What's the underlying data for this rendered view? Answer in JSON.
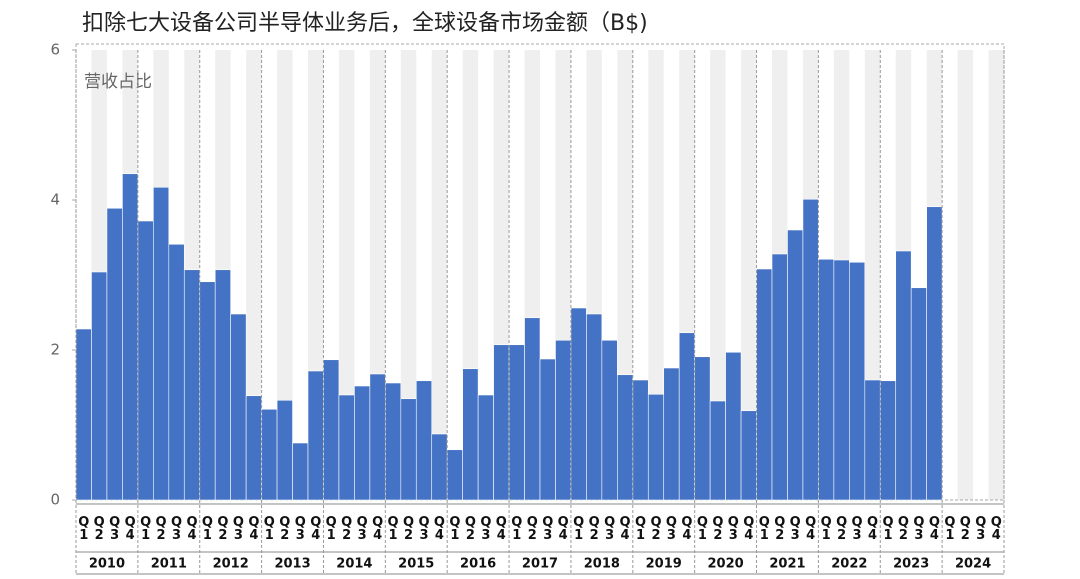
{
  "chart_data": {
    "type": "bar",
    "title": "扣除七大设备公司半导体业务后，全球设备市场金额（B$)",
    "annotation": "营收占比",
    "categories": [
      "Q1",
      "Q2",
      "Q3",
      "Q4",
      "Q1",
      "Q2",
      "Q3",
      "Q4",
      "Q1",
      "Q2",
      "Q3",
      "Q4",
      "Q1",
      "Q2",
      "Q3",
      "Q4",
      "Q1",
      "Q2",
      "Q3",
      "Q4",
      "Q1",
      "Q2",
      "Q3",
      "Q4",
      "Q1",
      "Q2",
      "Q3",
      "Q4",
      "Q1",
      "Q2",
      "Q3",
      "Q4",
      "Q1",
      "Q2",
      "Q3",
      "Q4",
      "Q1",
      "Q2",
      "Q3",
      "Q4",
      "Q1",
      "Q2",
      "Q3",
      "Q4",
      "Q1",
      "Q2",
      "Q3",
      "Q4",
      "Q1",
      "Q2",
      "Q3",
      "Q4",
      "Q1",
      "Q2",
      "Q3",
      "Q4",
      "Q1",
      "Q2",
      "Q3",
      "Q4"
    ],
    "years": [
      "2010",
      "2011",
      "2012",
      "2013",
      "2014",
      "2015",
      "2016",
      "2017",
      "2018",
      "2019",
      "2020",
      "2021",
      "2022",
      "2023",
      "2024"
    ],
    "values": [
      2.28,
      3.04,
      3.89,
      4.35,
      3.72,
      4.17,
      3.41,
      3.07,
      2.91,
      3.07,
      2.48,
      1.39,
      1.21,
      1.33,
      0.76,
      1.72,
      1.87,
      1.4,
      1.52,
      1.68,
      1.56,
      1.35,
      1.59,
      0.88,
      0.67,
      1.75,
      1.4,
      2.07,
      2.07,
      2.43,
      1.88,
      2.13,
      2.56,
      2.48,
      2.13,
      1.67,
      1.6,
      1.41,
      1.76,
      2.23,
      1.91,
      1.32,
      1.97,
      1.19,
      3.08,
      3.28,
      3.6,
      4.01,
      3.21,
      3.2,
      3.17,
      1.6,
      1.59,
      3.32,
      2.83,
      3.91,
      null,
      null,
      null,
      null
    ],
    "color": "#4472c4",
    "ylim": [
      0,
      6
    ],
    "yticks": [
      0,
      2,
      4,
      6
    ]
  }
}
